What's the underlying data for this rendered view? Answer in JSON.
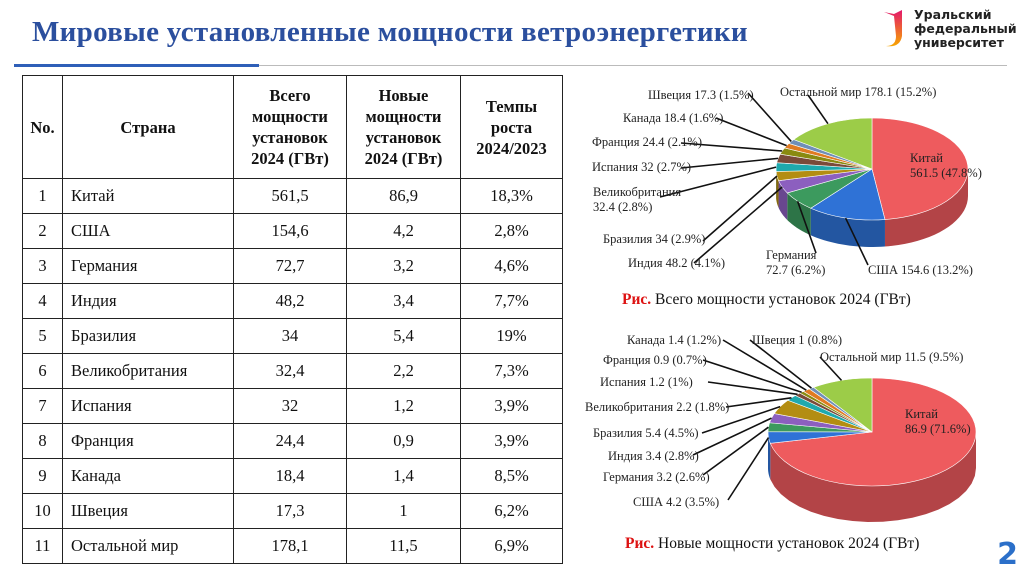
{
  "header": {
    "title": "Мировые установленные мощности ветроэнергетики"
  },
  "logo": {
    "line1": "Уральский",
    "line2": "федеральный",
    "line3": "университет"
  },
  "table": {
    "headers": [
      "No.",
      "Страна",
      "Всего мощности установок 2024 (ГВт)",
      "Новые мощности установок 2024 (ГВт)",
      "Темпы роста 2024/2023"
    ],
    "rows": [
      [
        "1",
        "Китай",
        "561,5",
        "86,9",
        "18,3%"
      ],
      [
        "2",
        "США",
        "154,6",
        "4,2",
        "2,8%"
      ],
      [
        "3",
        "Германия",
        "72,7",
        "3,2",
        "4,6%"
      ],
      [
        "4",
        "Индия",
        "48,2",
        "3,4",
        "7,7%"
      ],
      [
        "5",
        "Бразилия",
        "34",
        "5,4",
        "19%"
      ],
      [
        "6",
        "Великобритания",
        "32,4",
        "2,2",
        "7,3%"
      ],
      [
        "7",
        "Испания",
        "32",
        "1,2",
        "3,9%"
      ],
      [
        "8",
        "Франция",
        "24,4",
        "0,9",
        "3,9%"
      ],
      [
        "9",
        "Канада",
        "18,4",
        "1,4",
        "8,5%"
      ],
      [
        "10",
        "Швеция",
        "17,3",
        "1",
        "6,2%"
      ],
      [
        "11",
        "Остальной мир",
        "178,1",
        "11,5",
        "6,9%"
      ]
    ]
  },
  "chart_data": [
    {
      "type": "pie",
      "caption_prefix": "Рис.",
      "title": "Всего мощности установок 2024 (ГВт)",
      "categories": [
        "Китай",
        "США",
        "Германия",
        "Индия",
        "Бразилия",
        "Великобритания",
        "Испания",
        "Франция",
        "Канада",
        "Швеция",
        "Остальной мир"
      ],
      "values": [
        561.5,
        154.6,
        72.7,
        48.2,
        34,
        32.4,
        32,
        24.4,
        18.4,
        17.3,
        178.1
      ],
      "percents": [
        47.8,
        13.2,
        6.2,
        4.1,
        2.9,
        2.8,
        2.7,
        2.1,
        1.6,
        1.5,
        15.2
      ],
      "labels": [
        "Китай|561.5 (47.8%)",
        "США 154.6 (13.2%)",
        "Германия|72.7 (6.2%)",
        "Индия 48.2 (4.1%)",
        "Бразилия 34 (2.9%)",
        "Великобритания|32.4 (2.8%)",
        "Испания 32 (2.7%)",
        "Франция 24.4 (2.1%)",
        "Канада 18.4 (1.6%)",
        "Швеция 17.3 (1.5%)",
        "Остальной мир 178.1 (15.2%)"
      ]
    },
    {
      "type": "pie",
      "caption_prefix": "Рис.",
      "title": "Новые мощности установок 2024 (ГВт)",
      "categories": [
        "Китай",
        "США",
        "Германия",
        "Индия",
        "Бразилия",
        "Великобритания",
        "Испания",
        "Франция",
        "Канада",
        "Швеция",
        "Остальной мир"
      ],
      "values": [
        86.9,
        4.2,
        3.2,
        3.4,
        5.4,
        2.2,
        1.2,
        0.9,
        1.4,
        1,
        11.5
      ],
      "percents": [
        71.6,
        3.5,
        2.6,
        2.8,
        4.5,
        1.8,
        1,
        0.7,
        1.2,
        0.8,
        9.5
      ],
      "labels": [
        "Китай|86.9 (71.6%)",
        "США 4.2 (3.5%)",
        "Германия 3.2 (2.6%)",
        "Индия 3.4 (2.8%)",
        "Бразилия 5.4 (4.5%)",
        "Великобритания 2.2 (1.8%)",
        "Испания 1.2 (1%)",
        "Франция 0.9 (0.7%)",
        "Канада 1.4 (1.2%)",
        "Швеция 1 (0.8%)",
        "Остальной мир 11.5 (9.5%)"
      ]
    }
  ],
  "colors": [
    "#ee5b5e",
    "#2f72d6",
    "#3c9a5e",
    "#8c5fbf",
    "#b38d12",
    "#1fa9ad",
    "#7a4a3a",
    "#8a8a10",
    "#e07b22",
    "#6f8fb8",
    "#9ccc48"
  ],
  "page_number": "2"
}
